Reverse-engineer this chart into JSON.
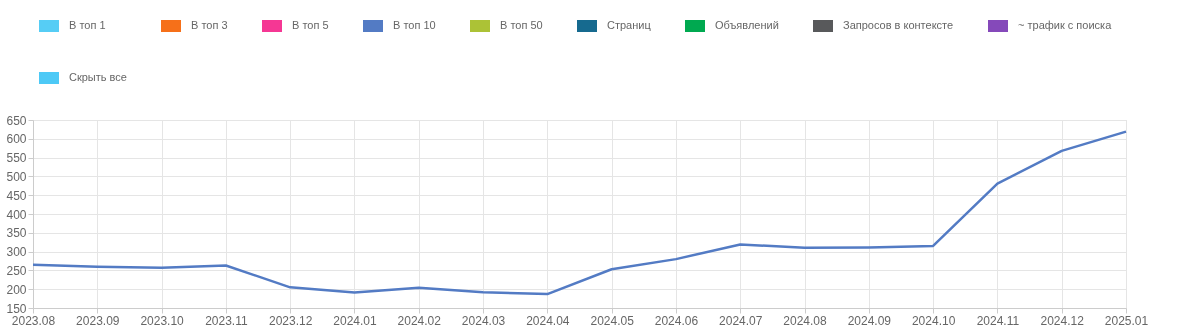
{
  "chart_data": {
    "type": "line",
    "categories": [
      "2023.08",
      "2023.09",
      "2023.10",
      "2023.11",
      "2023.12",
      "2024.01",
      "2024.02",
      "2024.03",
      "2024.04",
      "2024.05",
      "2024.06",
      "2024.07",
      "2024.08",
      "2024.09",
      "2024.10",
      "2024.11",
      "2024.12",
      "2025.01"
    ],
    "series": [
      {
        "name": "В топ 1",
        "color": "#56cdf5",
        "values": [
          null,
          null,
          null,
          null,
          null,
          null,
          null,
          null,
          null,
          null,
          null,
          null,
          null,
          null,
          null,
          null,
          null,
          null
        ]
      },
      {
        "name": "В топ 3",
        "color": "#f67019",
        "values": [
          null,
          null,
          null,
          null,
          null,
          null,
          null,
          null,
          null,
          null,
          null,
          null,
          null,
          null,
          null,
          null,
          null,
          null
        ]
      },
      {
        "name": "В топ 5",
        "color": "#f53794",
        "values": [
          null,
          null,
          null,
          null,
          null,
          null,
          null,
          null,
          null,
          null,
          null,
          null,
          null,
          null,
          null,
          null,
          null,
          null
        ]
      },
      {
        "name": "В топ 10",
        "color": "#537bc4",
        "values": [
          265,
          260,
          257,
          263,
          205,
          191,
          204,
          192,
          187,
          253,
          280,
          319,
          310,
          311,
          315,
          481,
          568,
          619
        ]
      },
      {
        "name": "В топ 50",
        "color": "#acc236",
        "values": [
          null,
          null,
          null,
          null,
          null,
          null,
          null,
          null,
          null,
          null,
          null,
          null,
          null,
          null,
          null,
          null,
          null,
          null
        ]
      },
      {
        "name": "Страниц",
        "color": "#166a8f",
        "values": [
          null,
          null,
          null,
          null,
          null,
          null,
          null,
          null,
          null,
          null,
          null,
          null,
          null,
          null,
          null,
          null,
          null,
          null
        ]
      },
      {
        "name": "Объявлений",
        "color": "#00a950",
        "values": [
          null,
          null,
          null,
          null,
          null,
          null,
          null,
          null,
          null,
          null,
          null,
          null,
          null,
          null,
          null,
          null,
          null,
          null
        ]
      },
      {
        "name": "Запросов в контексте",
        "color": "#58595b",
        "values": [
          null,
          null,
          null,
          null,
          null,
          null,
          null,
          null,
          null,
          null,
          null,
          null,
          null,
          null,
          null,
          null,
          null,
          null
        ]
      },
      {
        "name": "~ трафик с поиска",
        "color": "#8549ba",
        "values": [
          null,
          null,
          null,
          null,
          null,
          null,
          null,
          null,
          null,
          null,
          null,
          null,
          null,
          null,
          null,
          null,
          null,
          null
        ]
      },
      {
        "name": "Скрыть все",
        "color": "#4dc9f6",
        "values": [
          null,
          null,
          null,
          null,
          null,
          null,
          null,
          null,
          null,
          null,
          null,
          null,
          null,
          null,
          null,
          null,
          null,
          null
        ]
      }
    ],
    "ylim": [
      150,
      650
    ],
    "yticks": [
      150,
      200,
      250,
      300,
      350,
      400,
      450,
      500,
      550,
      600,
      650
    ],
    "grid": true,
    "legend": "top",
    "marker": "none",
    "line_style": "solid"
  }
}
